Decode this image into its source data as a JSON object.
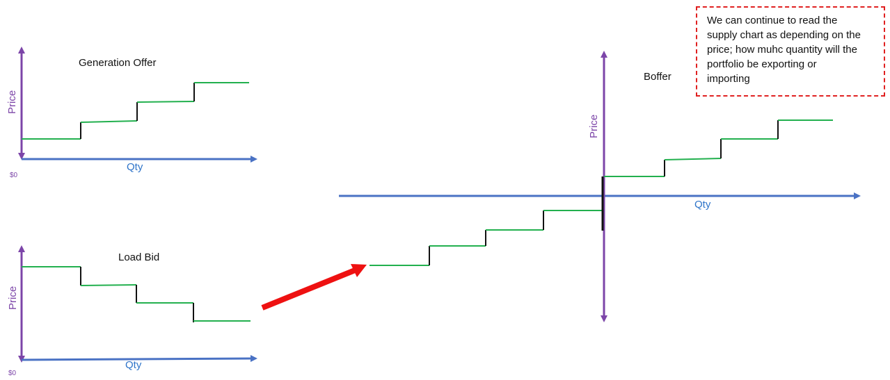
{
  "colors": {
    "axis_price": "#7c45a8",
    "axis_qty": "#4a72c4",
    "step": "#22b04e",
    "riser": "#111111",
    "arrow": "#ee1111",
    "note_border": "#e02020"
  },
  "gen_offer": {
    "title": "Generation Offer",
    "price_label": "Price",
    "qty_label": "Qty",
    "zero_label": "$0"
  },
  "load_bid": {
    "title": "Load Bid",
    "price_label": "Price",
    "qty_label": "Qty",
    "zero_label": "$0"
  },
  "boffer": {
    "title": "Boffer",
    "price_label": "Price",
    "qty_label": "Qty"
  },
  "note": {
    "lines": [
      "We can continue to read the",
      "supply chart as depending on the",
      "price; how muhc quantity will the",
      "portfolio be exporting or",
      "importing"
    ]
  }
}
